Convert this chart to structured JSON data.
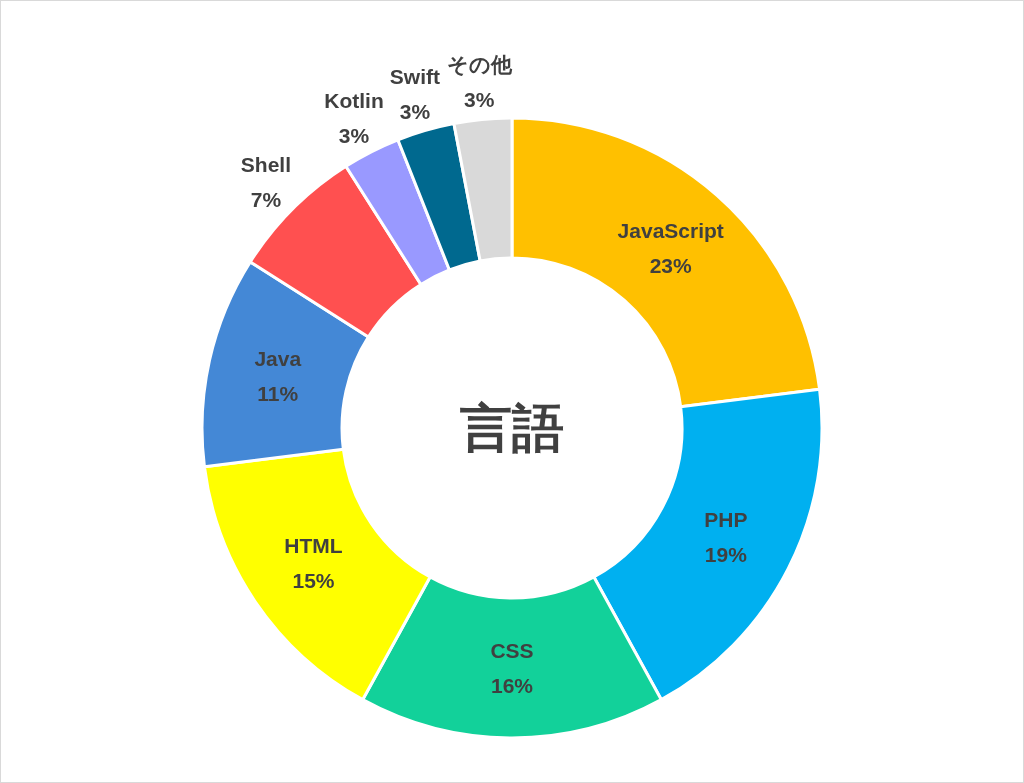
{
  "chart_data": {
    "type": "donut",
    "title": "言語",
    "categories": [
      "JavaScript",
      "PHP",
      "CSS",
      "HTML",
      "Java",
      "Shell",
      "Kotlin",
      "Swift",
      "その他"
    ],
    "values": [
      23,
      19,
      16,
      15,
      11,
      7,
      3,
      3,
      3
    ],
    "value_labels": [
      "23%",
      "19%",
      "16%",
      "15%",
      "11%",
      "7%",
      "3%",
      "3%",
      "3%"
    ],
    "colors": [
      "#ffc000",
      "#00b0f0",
      "#12d19a",
      "#ffff00",
      "#4488d6",
      "#ff5050",
      "#9999ff",
      "#00698f",
      "#d9d9d9"
    ]
  }
}
